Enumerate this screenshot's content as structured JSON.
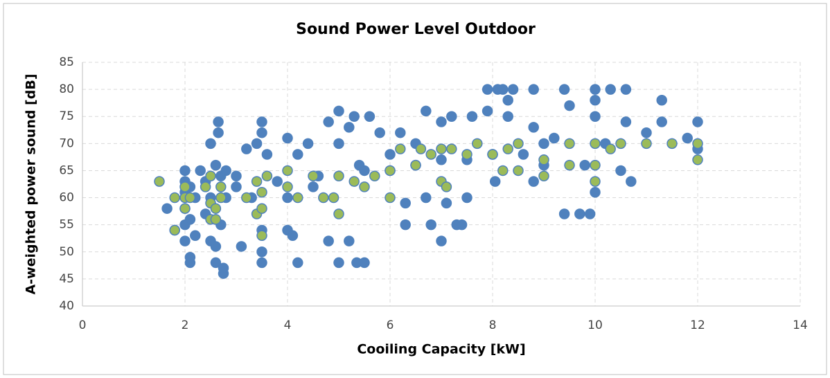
{
  "chart_data": {
    "type": "scatter",
    "title": "Sound Power Level Outdoor",
    "x_label": "Cooiling Capacity [kW]",
    "y_label": "A-weighted power sound [dB]",
    "xlim": [
      0,
      14
    ],
    "xticks": [
      0,
      2,
      4,
      6,
      8,
      10,
      12,
      14
    ],
    "ylim": [
      40,
      85
    ],
    "yticks": [
      40,
      45,
      50,
      55,
      60,
      65,
      70,
      75,
      80,
      85
    ],
    "grid": true,
    "series": [
      {
        "color": "#4f81bd",
        "x": [
          1.65,
          1.8,
          2,
          2,
          2,
          2,
          2,
          2,
          2.1,
          2.1,
          2.1,
          2.1,
          2.2,
          2.2,
          2.3,
          2.4,
          2.5,
          2.5,
          2.5,
          2.6,
          2.6,
          2.6,
          2.65,
          2.65,
          2.7,
          2.7,
          2.75,
          2.75,
          2.8,
          2.8,
          3,
          3.1,
          3.2,
          3.4,
          3.5,
          3.5,
          3.5,
          3.5,
          3.5,
          3.6,
          3.8,
          4,
          4,
          4.1,
          4.2,
          4.2,
          4.4,
          4.6,
          4.8,
          4.8,
          5,
          5,
          5,
          5.2,
          5.2,
          5.3,
          5.35,
          5.5,
          5.4,
          5.6,
          5.8,
          6,
          6.2,
          6.3,
          6.3,
          6.5,
          6.7,
          6.8,
          6.7,
          7,
          7,
          7.1,
          7.2,
          7.3,
          7.4,
          7.5,
          7.6,
          7.9,
          7.9,
          8.05,
          8.1,
          8.2,
          8.3,
          8.3,
          8.4,
          8.6,
          8.8,
          8.8,
          8.8,
          9,
          9.2,
          9.4,
          9.4,
          9.5,
          9.7,
          9.8,
          9.9,
          10,
          10,
          10,
          10,
          10.2,
          10.3,
          10.5,
          10.6,
          10.6,
          10.7,
          11,
          11.3,
          11.3,
          11.8,
          12,
          12,
          3,
          4.5,
          5.5,
          6,
          6.5,
          7,
          7.5,
          8,
          2.4,
          3.3,
          4,
          9
        ],
        "values": [
          58,
          54,
          52,
          55,
          58,
          61,
          63,
          65,
          48,
          49,
          56,
          62,
          53,
          60,
          65,
          57,
          52,
          60,
          70,
          48,
          51,
          66,
          74,
          72,
          55,
          64,
          46,
          47,
          60,
          65,
          64,
          51,
          69,
          70,
          48,
          50,
          54,
          74,
          72,
          68,
          63,
          54,
          71,
          53,
          48,
          68,
          70,
          64,
          52,
          74,
          48,
          70,
          76,
          52,
          73,
          75,
          48,
          48,
          66,
          75,
          72,
          68,
          72,
          55,
          59,
          70,
          76,
          55,
          60,
          52,
          74,
          59,
          75,
          55,
          55,
          60,
          75,
          76,
          80,
          63,
          80,
          80,
          75,
          78,
          80,
          68,
          63,
          73,
          80,
          70,
          71,
          57,
          80,
          77,
          57,
          66,
          57,
          61,
          75,
          78,
          80,
          70,
          80,
          65,
          74,
          80,
          63,
          72,
          78,
          74,
          71,
          69,
          74,
          62,
          62,
          65,
          65,
          66,
          67,
          67,
          68,
          63,
          60,
          60,
          66
        ]
      },
      {
        "color": "#9bbb59",
        "x": [
          1.5,
          1.8,
          1.8,
          2,
          2,
          2,
          2.1,
          2.4,
          2.5,
          2.5,
          2.5,
          2.6,
          2.6,
          2.7,
          2.7,
          3.2,
          3.4,
          3.4,
          3.5,
          3.5,
          3.5,
          3.6,
          4,
          4,
          4.2,
          4.5,
          4.7,
          4.9,
          5,
          5,
          5.3,
          5.5,
          5.7,
          6,
          6,
          6.2,
          6.5,
          6.6,
          6.8,
          7,
          7,
          7.2,
          7.5,
          7.7,
          8,
          8.3,
          8.5,
          8.5,
          9,
          9,
          9.5,
          9.5,
          10,
          10,
          10,
          10.3,
          10.5,
          11,
          11.5,
          12,
          12,
          8.2,
          7.1
        ],
        "values": [
          63,
          54,
          60,
          58,
          60,
          62,
          60,
          62,
          56,
          59,
          64,
          58,
          56,
          60,
          62,
          60,
          57,
          63,
          53,
          58,
          61,
          64,
          62,
          65,
          60,
          64,
          60,
          60,
          57,
          64,
          63,
          62,
          64,
          60,
          65,
          69,
          66,
          69,
          68,
          63,
          69,
          69,
          68,
          70,
          68,
          69,
          70,
          65,
          67,
          64,
          70,
          66,
          63,
          70,
          66,
          69,
          70,
          70,
          70,
          67,
          70,
          65,
          62
        ]
      }
    ]
  }
}
